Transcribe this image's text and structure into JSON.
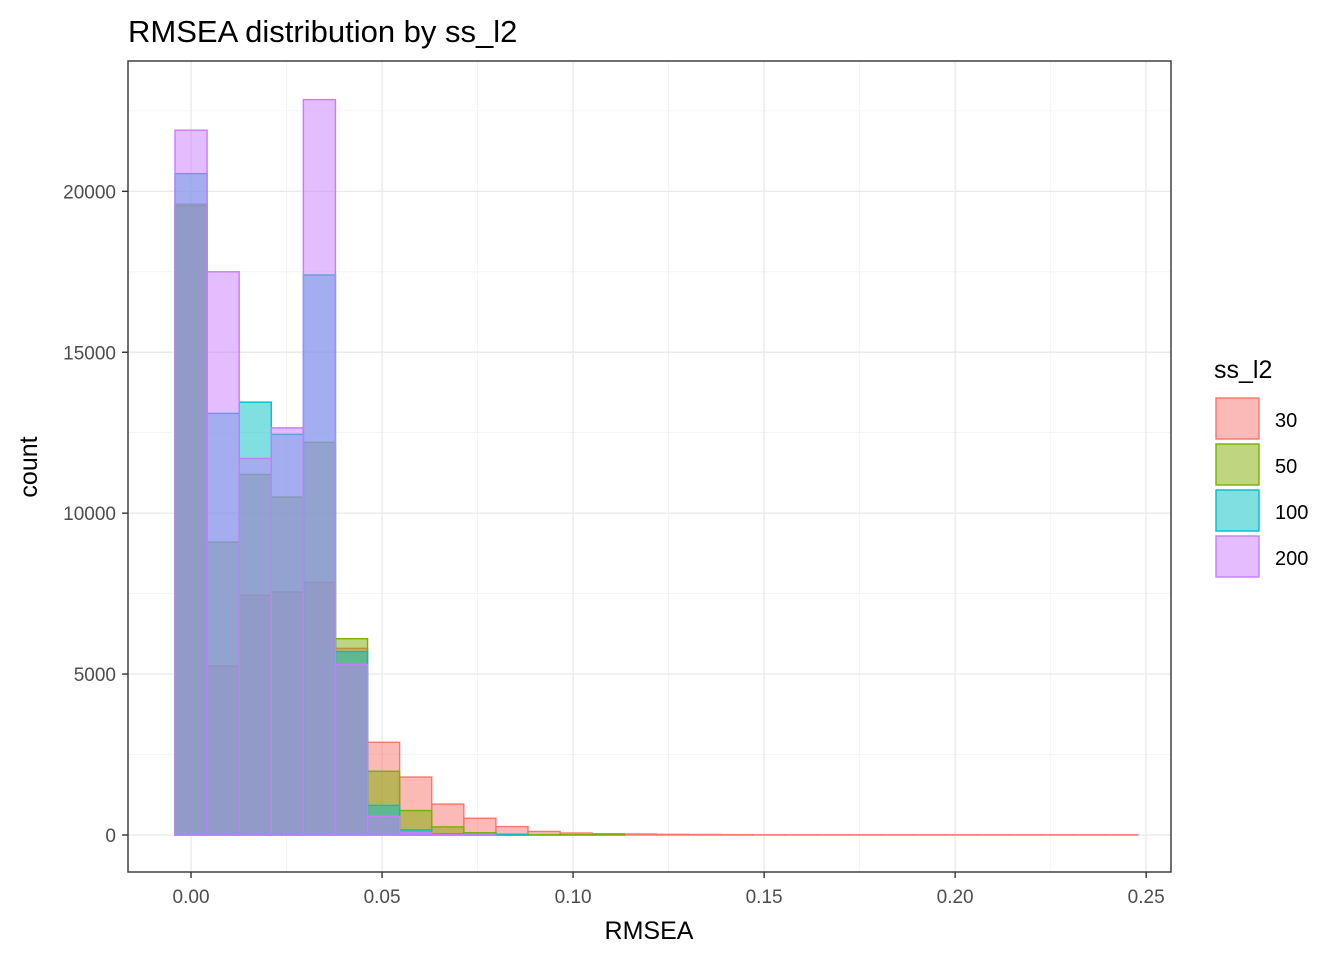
{
  "chart_data": {
    "type": "histogram",
    "title": "RMSEA distribution by ss_l2",
    "xlabel": "RMSEA",
    "ylabel": "count",
    "xlim": [
      -0.0165,
      0.2565
    ],
    "ylim": [
      -1150,
      24050
    ],
    "x_ticks": [
      0.0,
      0.05,
      0.1,
      0.15,
      0.2,
      0.25
    ],
    "x_tick_labels": [
      "0.00",
      "0.05",
      "0.10",
      "0.15",
      "0.20",
      "0.25"
    ],
    "y_ticks": [
      0,
      5000,
      10000,
      15000,
      20000
    ],
    "y_tick_labels": [
      "0",
      "5000",
      "10000",
      "15000",
      "20000"
    ],
    "grid": true,
    "legend": {
      "title": "ss_l2",
      "position": "right"
    },
    "bin_width": 0.0084,
    "bin_start": -0.0042,
    "series": [
      {
        "name": "30",
        "fill": "#F8766D",
        "stroke": "#F8766D",
        "counts": [
          19600,
          5250,
          7450,
          7550,
          7850,
          5800,
          2880,
          1800,
          960,
          520,
          260,
          110,
          60,
          40,
          30,
          20,
          15,
          10,
          5,
          5,
          5,
          5,
          5,
          5,
          5,
          5,
          5,
          5,
          5,
          5
        ]
      },
      {
        "name": "50",
        "fill": "#7CAE00",
        "stroke": "#7CAE00",
        "counts": [
          19550,
          9100,
          11200,
          10500,
          12200,
          6100,
          1980,
          760,
          250,
          70,
          25,
          10,
          5,
          5,
          0,
          0,
          0,
          0,
          0,
          0,
          0,
          0,
          0,
          0,
          0,
          0,
          0,
          0,
          0,
          0
        ]
      },
      {
        "name": "100",
        "fill": "#00BFC4",
        "stroke": "#00BFC4",
        "counts": [
          20550,
          13100,
          13450,
          12450,
          17400,
          5700,
          920,
          160,
          40,
          10,
          5,
          0,
          0,
          0,
          0,
          0,
          0,
          0,
          0,
          0,
          0,
          0,
          0,
          0,
          0,
          0,
          0,
          0,
          0,
          0
        ]
      },
      {
        "name": "200",
        "fill": "#C77CFF",
        "stroke": "#C77CFF",
        "counts": [
          21900,
          17500,
          11700,
          12650,
          22850,
          5300,
          580,
          70,
          15,
          5,
          0,
          0,
          0,
          0,
          0,
          0,
          0,
          0,
          0,
          0,
          0,
          0,
          0,
          0,
          0,
          0,
          0,
          0,
          0,
          0
        ]
      }
    ]
  }
}
